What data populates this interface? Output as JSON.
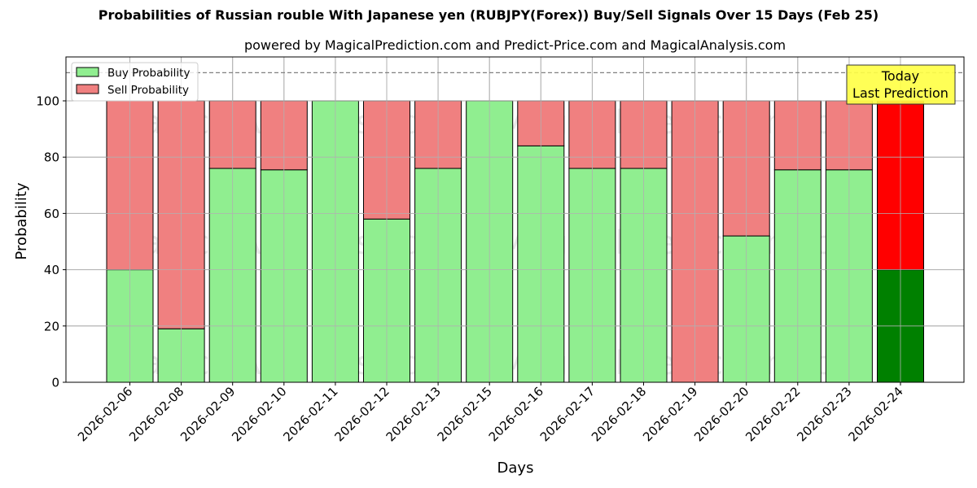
{
  "chart_data": {
    "type": "bar",
    "stacked": true,
    "title": "Probabilities of Russian rouble With Japanese yen (RUBJPY(Forex)) Buy/Sell Signals Over 15 Days (Feb 25)",
    "subtitle": "powered by MagicalPrediction.com and Predict-Price.com and MagicalAnalysis.com",
    "xlabel": "Days",
    "ylabel": "Probability",
    "ylim": [
      0,
      115
    ],
    "yticks": [
      0,
      20,
      40,
      60,
      80,
      100
    ],
    "grid": true,
    "reference_line": {
      "y": 110,
      "style": "dashed"
    },
    "legend": {
      "position": "upper left",
      "entries": [
        "Buy Probability",
        "Sell Probability"
      ]
    },
    "categories": [
      "2026-02-06",
      "2026-02-08",
      "2026-02-09",
      "2026-02-10",
      "2026-02-11",
      "2026-02-12",
      "2026-02-13",
      "2026-02-15",
      "2026-02-16",
      "2026-02-17",
      "2026-02-18",
      "2026-02-19",
      "2026-02-20",
      "2026-02-22",
      "2026-02-23",
      "2026-02-24"
    ],
    "series": [
      {
        "name": "Buy Probability",
        "color": "#90ee90",
        "values": [
          40,
          19,
          76,
          75.5,
          100,
          58,
          76,
          100,
          84,
          76,
          76,
          0,
          52,
          75.5,
          75.5,
          40
        ]
      },
      {
        "name": "Sell Probability",
        "color": "#f08080",
        "values": [
          60,
          81,
          24,
          24.5,
          0,
          42,
          24,
          0,
          16,
          24,
          24,
          100,
          48,
          24.5,
          24.5,
          60
        ]
      }
    ],
    "highlight": {
      "index": 15,
      "buy_color": "#008000",
      "sell_color": "#ff0000",
      "annotation": "Today\nLast Prediction"
    },
    "watermarks": [
      "MagicalAnalysis.com",
      "MagicalPrediction.com"
    ]
  },
  "annotation": {
    "line1": "Today",
    "line2": "Last Prediction"
  },
  "watermark": {
    "left": "MagicalAnalysis.com",
    "right": "MagicalPrediction.com"
  }
}
